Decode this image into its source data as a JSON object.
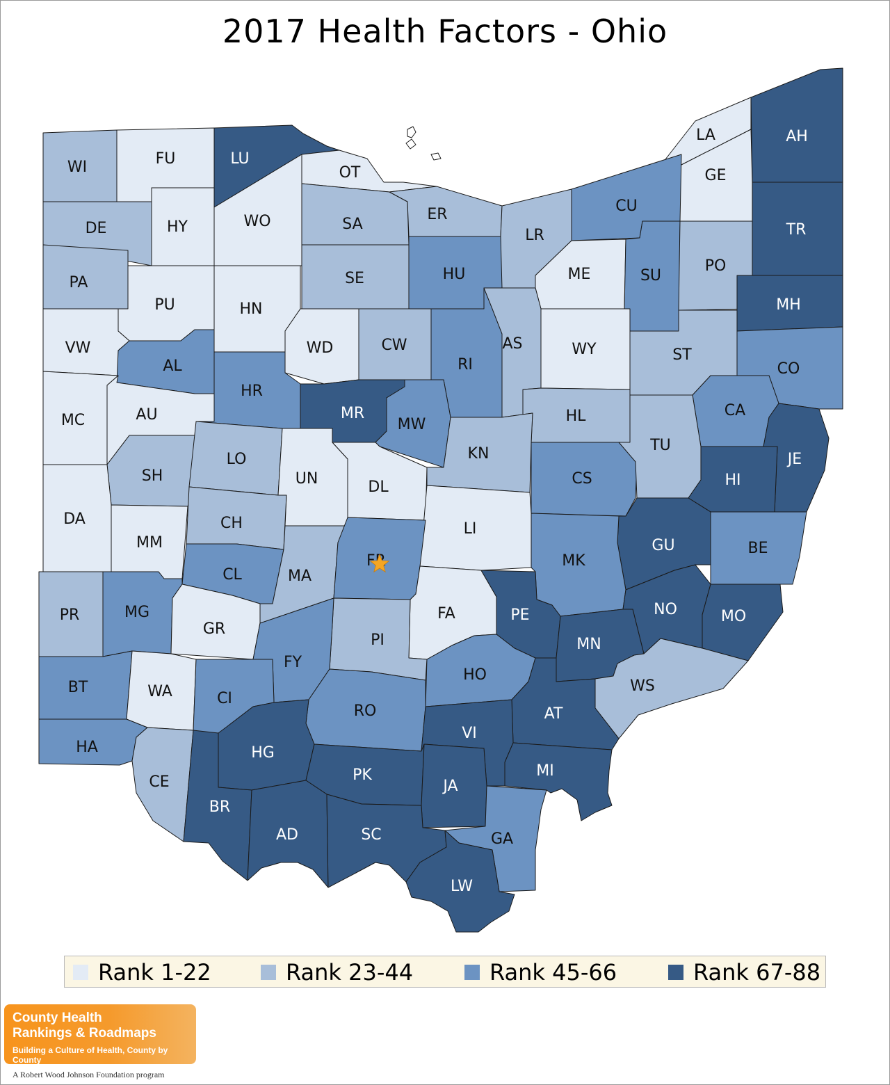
{
  "title": "2017 Health Factors - Ohio",
  "colors": {
    "rank_1_22": "#e3ebf5",
    "rank_23_44": "#a8bed9",
    "rank_45_66": "#6c93c2",
    "rank_67_88": "#365a85",
    "highlight_star": "#f5a623"
  },
  "legend": [
    {
      "label": "Rank 1-22",
      "color": "#e3ebf5"
    },
    {
      "label": "Rank 23-44",
      "color": "#a8bed9"
    },
    {
      "label": "Rank 45-66",
      "color": "#6c93c2"
    },
    {
      "label": "Rank 67-88",
      "color": "#365a85"
    }
  ],
  "counties": [
    {
      "code": "WI",
      "tier": 2
    },
    {
      "code": "FU",
      "tier": 1
    },
    {
      "code": "LU",
      "tier": 4
    },
    {
      "code": "OT",
      "tier": 1
    },
    {
      "code": "LA",
      "tier": 1
    },
    {
      "code": "AH",
      "tier": 4
    },
    {
      "code": "GE",
      "tier": 1
    },
    {
      "code": "DE",
      "tier": 2
    },
    {
      "code": "HY",
      "tier": 1
    },
    {
      "code": "WO",
      "tier": 1
    },
    {
      "code": "SA",
      "tier": 2
    },
    {
      "code": "ER",
      "tier": 2
    },
    {
      "code": "LR",
      "tier": 2
    },
    {
      "code": "CU",
      "tier": 3
    },
    {
      "code": "TR",
      "tier": 4
    },
    {
      "code": "PA",
      "tier": 2
    },
    {
      "code": "PU",
      "tier": 1
    },
    {
      "code": "HN",
      "tier": 1
    },
    {
      "code": "SE",
      "tier": 2
    },
    {
      "code": "HU",
      "tier": 3
    },
    {
      "code": "ME",
      "tier": 1
    },
    {
      "code": "SU",
      "tier": 3
    },
    {
      "code": "PO",
      "tier": 2
    },
    {
      "code": "MH",
      "tier": 4
    },
    {
      "code": "VW",
      "tier": 1
    },
    {
      "code": "AL",
      "tier": 3
    },
    {
      "code": "WD",
      "tier": 1
    },
    {
      "code": "CW",
      "tier": 2
    },
    {
      "code": "RI",
      "tier": 3
    },
    {
      "code": "AS",
      "tier": 2
    },
    {
      "code": "WY",
      "tier": 1
    },
    {
      "code": "ST",
      "tier": 2
    },
    {
      "code": "CO",
      "tier": 3
    },
    {
      "code": "MC",
      "tier": 1
    },
    {
      "code": "AU",
      "tier": 1
    },
    {
      "code": "HR",
      "tier": 3
    },
    {
      "code": "MR",
      "tier": 4
    },
    {
      "code": "MW",
      "tier": 3
    },
    {
      "code": "HL",
      "tier": 2
    },
    {
      "code": "CA",
      "tier": 3
    },
    {
      "code": "SH",
      "tier": 2
    },
    {
      "code": "LO",
      "tier": 2
    },
    {
      "code": "UN",
      "tier": 1
    },
    {
      "code": "DL",
      "tier": 1
    },
    {
      "code": "KN",
      "tier": 2
    },
    {
      "code": "CS",
      "tier": 3
    },
    {
      "code": "TU",
      "tier": 2
    },
    {
      "code": "JE",
      "tier": 4
    },
    {
      "code": "HI",
      "tier": 4
    },
    {
      "code": "DA",
      "tier": 1
    },
    {
      "code": "MM",
      "tier": 1
    },
    {
      "code": "CH",
      "tier": 2
    },
    {
      "code": "LI",
      "tier": 1
    },
    {
      "code": "GU",
      "tier": 4
    },
    {
      "code": "BE",
      "tier": 3
    },
    {
      "code": "CL",
      "tier": 3
    },
    {
      "code": "MA",
      "tier": 2
    },
    {
      "code": "FR",
      "tier": 3
    },
    {
      "code": "MK",
      "tier": 3
    },
    {
      "code": "PR",
      "tier": 2
    },
    {
      "code": "MG",
      "tier": 3
    },
    {
      "code": "GR",
      "tier": 1
    },
    {
      "code": "FA",
      "tier": 1
    },
    {
      "code": "PE",
      "tier": 4
    },
    {
      "code": "NO",
      "tier": 4
    },
    {
      "code": "MO",
      "tier": 4
    },
    {
      "code": "PI",
      "tier": 2
    },
    {
      "code": "MN",
      "tier": 4
    },
    {
      "code": "FY",
      "tier": 3
    },
    {
      "code": "BT",
      "tier": 3
    },
    {
      "code": "WA",
      "tier": 1
    },
    {
      "code": "HO",
      "tier": 3
    },
    {
      "code": "WS",
      "tier": 2
    },
    {
      "code": "CI",
      "tier": 3
    },
    {
      "code": "RO",
      "tier": 3
    },
    {
      "code": "AT",
      "tier": 4
    },
    {
      "code": "VI",
      "tier": 4
    },
    {
      "code": "HA",
      "tier": 3
    },
    {
      "code": "HG",
      "tier": 4
    },
    {
      "code": "MI",
      "tier": 4
    },
    {
      "code": "PK",
      "tier": 4
    },
    {
      "code": "CE",
      "tier": 2
    },
    {
      "code": "JA",
      "tier": 4
    },
    {
      "code": "BR",
      "tier": 4
    },
    {
      "code": "AD",
      "tier": 4
    },
    {
      "code": "SC",
      "tier": 4
    },
    {
      "code": "GA",
      "tier": 3
    },
    {
      "code": "LW",
      "tier": 4
    }
  ],
  "highlight": {
    "county": "FR",
    "icon": "star-icon"
  },
  "logo": {
    "line1": "County Health",
    "line2": "Rankings & Roadmaps",
    "tagline": "Building a Culture of Health, County by County",
    "foundation": "A Robert Wood Johnson Foundation program"
  }
}
